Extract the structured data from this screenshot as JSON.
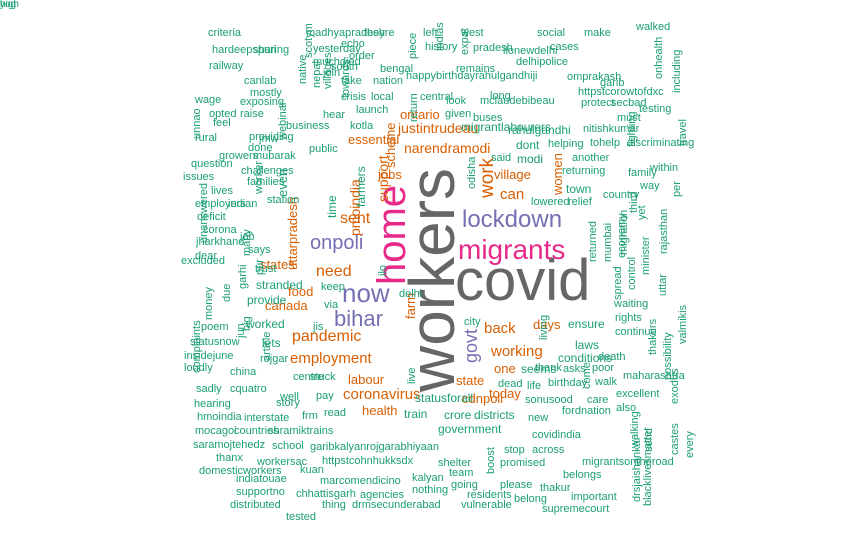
{
  "palette": {
    "teal": "#1b9e77",
    "orange": "#d95f02",
    "purple": "#7570b3",
    "magenta": "#e7298a",
    "gray": "#666666"
  },
  "words": [
    {
      "text": "covid",
      "color": "gray"
    },
    {
      "text": "workers",
      "color": "gray"
    },
    {
      "text": "home",
      "color": "magenta"
    },
    {
      "text": "migrants",
      "color": "magenta"
    },
    {
      "text": "lockdown",
      "color": "purple"
    },
    {
      "text": "now",
      "color": "purple"
    },
    {
      "text": "bihar",
      "color": "purple"
    },
    {
      "text": "onpoli",
      "color": "purple"
    },
    {
      "text": "govt",
      "color": "purple"
    },
    {
      "text": "work",
      "color": "orange"
    },
    {
      "text": "need",
      "color": "orange"
    },
    {
      "text": "sent",
      "color": "orange"
    },
    {
      "text": "pandemic",
      "color": "orange"
    },
    {
      "text": "employment",
      "color": "orange"
    },
    {
      "text": "coronavirus",
      "color": "orange"
    },
    {
      "text": "working",
      "color": "orange"
    },
    {
      "text": "justintrudeau",
      "color": "orange"
    },
    {
      "text": "narendramodi",
      "color": "orange"
    },
    {
      "text": "support",
      "color": "orange"
    },
    {
      "text": "pmoindia",
      "color": "orange"
    },
    {
      "text": "can",
      "color": "orange"
    },
    {
      "text": "back",
      "color": "orange"
    },
    {
      "text": "states",
      "color": "orange"
    },
    {
      "text": "canada",
      "color": "orange"
    },
    {
      "text": "food",
      "color": "orange"
    },
    {
      "text": "jobs",
      "color": "orange"
    },
    {
      "text": "village",
      "color": "orange"
    },
    {
      "text": "days",
      "color": "orange"
    },
    {
      "text": "state",
      "color": "orange"
    },
    {
      "text": "labour",
      "color": "orange"
    },
    {
      "text": "health",
      "color": "orange"
    },
    {
      "text": "cdnpoli",
      "color": "orange"
    },
    {
      "text": "today",
      "color": "orange"
    },
    {
      "text": "one",
      "color": "orange"
    },
    {
      "text": "ontario",
      "color": "orange"
    },
    {
      "text": "scheme",
      "color": "orange"
    },
    {
      "text": "essential",
      "color": "orange"
    },
    {
      "text": "women",
      "color": "orange"
    },
    {
      "text": "uttarpradesh",
      "color": "orange"
    },
    {
      "text": "farm",
      "color": "orange"
    },
    {
      "text": "ensure",
      "color": "teal"
    },
    {
      "text": "migrantlabourers",
      "color": "teal"
    },
    {
      "text": "rahulgandhi",
      "color": "teal"
    },
    {
      "text": "mclaudebibeau",
      "color": "teal"
    },
    {
      "text": "happybirthdayrahulgandhiji",
      "color": "teal"
    },
    {
      "text": "kotla",
      "color": "teal"
    },
    {
      "text": "business",
      "color": "teal"
    },
    {
      "text": "public",
      "color": "teal"
    },
    {
      "text": "mubarak",
      "color": "teal"
    },
    {
      "text": "dont",
      "color": "teal"
    },
    {
      "text": "modi",
      "color": "teal"
    },
    {
      "text": "said",
      "color": "teal"
    },
    {
      "text": "helping",
      "color": "teal"
    },
    {
      "text": "another",
      "color": "teal"
    },
    {
      "text": "returning",
      "color": "teal"
    },
    {
      "text": "town",
      "color": "teal"
    },
    {
      "text": "country",
      "color": "teal"
    },
    {
      "text": "relief",
      "color": "teal"
    },
    {
      "text": "returned",
      "color": "teal"
    },
    {
      "text": "mumbai",
      "color": "teal"
    },
    {
      "text": "economy",
      "color": "teal"
    },
    {
      "text": "migration",
      "color": "teal"
    },
    {
      "text": "third",
      "color": "teal"
    },
    {
      "text": "yet",
      "color": "teal"
    },
    {
      "text": "rajasthan",
      "color": "teal"
    },
    {
      "text": "minister",
      "color": "teal"
    },
    {
      "text": "control",
      "color": "teal"
    },
    {
      "text": "spread",
      "color": "teal"
    },
    {
      "text": "waiting",
      "color": "teal"
    },
    {
      "text": "rights",
      "color": "teal"
    },
    {
      "text": "continue",
      "color": "teal"
    },
    {
      "text": "laws",
      "color": "teal"
    },
    {
      "text": "conditions",
      "color": "teal"
    },
    {
      "text": "death",
      "color": "teal"
    },
    {
      "text": "seems",
      "color": "teal"
    },
    {
      "text": "thank",
      "color": "teal"
    },
    {
      "text": "asks",
      "color": "teal"
    },
    {
      "text": "poor",
      "color": "teal"
    },
    {
      "text": "birthday",
      "color": "teal"
    },
    {
      "text": "walk",
      "color": "teal"
    },
    {
      "text": "dead",
      "color": "teal"
    },
    {
      "text": "life",
      "color": "teal"
    },
    {
      "text": "sonusood",
      "color": "teal"
    },
    {
      "text": "care",
      "color": "teal"
    },
    {
      "text": "fordnation",
      "color": "teal"
    },
    {
      "text": "come",
      "color": "teal"
    },
    {
      "text": "new",
      "color": "teal"
    },
    {
      "text": "covidindia",
      "color": "teal"
    },
    {
      "text": "crore",
      "color": "teal"
    },
    {
      "text": "districts",
      "color": "teal"
    },
    {
      "text": "government",
      "color": "teal"
    },
    {
      "text": "statusforall",
      "color": "teal"
    },
    {
      "text": "train",
      "color": "teal"
    },
    {
      "text": "read",
      "color": "teal"
    },
    {
      "text": "frm",
      "color": "teal"
    },
    {
      "text": "pay",
      "color": "teal"
    },
    {
      "text": "stuck",
      "color": "teal"
    },
    {
      "text": "story",
      "color": "teal"
    },
    {
      "text": "interstate",
      "color": "teal"
    },
    {
      "text": "shramiktrains",
      "color": "teal"
    },
    {
      "text": "school",
      "color": "teal"
    },
    {
      "text": "garibkalyanrojgarabhiyaan",
      "color": "teal"
    },
    {
      "text": "httpstcohnhukksdx",
      "color": "teal"
    },
    {
      "text": "shelter",
      "color": "teal"
    },
    {
      "text": "promised",
      "color": "teal"
    },
    {
      "text": "stop",
      "color": "teal"
    },
    {
      "text": "across",
      "color": "teal"
    },
    {
      "text": "boost",
      "color": "teal"
    },
    {
      "text": "kalyan",
      "color": "teal"
    },
    {
      "text": "team",
      "color": "teal"
    },
    {
      "text": "marcomendicino",
      "color": "teal"
    },
    {
      "text": "workersac",
      "color": "teal"
    },
    {
      "text": "kuan",
      "color": "teal"
    },
    {
      "text": "chhattisgarh",
      "color": "teal"
    },
    {
      "text": "agencies",
      "color": "teal"
    },
    {
      "text": "nothing",
      "color": "teal"
    },
    {
      "text": "going",
      "color": "teal"
    },
    {
      "text": "residents",
      "color": "teal"
    },
    {
      "text": "please",
      "color": "teal"
    },
    {
      "text": "belong",
      "color": "teal"
    },
    {
      "text": "thakur",
      "color": "teal"
    },
    {
      "text": "belongs",
      "color": "teal"
    },
    {
      "text": "important",
      "color": "teal"
    },
    {
      "text": "drmsecunderabad",
      "color": "teal"
    },
    {
      "text": "vulnerable",
      "color": "teal"
    },
    {
      "text": "supremecourt",
      "color": "teal"
    },
    {
      "text": "thing",
      "color": "teal"
    },
    {
      "text": "tested",
      "color": "teal"
    },
    {
      "text": "distributed",
      "color": "teal"
    },
    {
      "text": "supportno",
      "color": "teal"
    },
    {
      "text": "indiatouae",
      "color": "teal"
    },
    {
      "text": "domesticworkers",
      "color": "teal"
    },
    {
      "text": "thanx",
      "color": "teal"
    },
    {
      "text": "saramojtehedz",
      "color": "teal"
    },
    {
      "text": "mocagoi",
      "color": "teal"
    },
    {
      "text": "hmoindia",
      "color": "teal"
    },
    {
      "text": "countries",
      "color": "teal"
    },
    {
      "text": "hearing",
      "color": "teal"
    },
    {
      "text": "cquatro",
      "color": "teal"
    },
    {
      "text": "sadly",
      "color": "teal"
    },
    {
      "text": "complaints",
      "color": "teal"
    },
    {
      "text": "loudly",
      "color": "teal"
    },
    {
      "text": "china",
      "color": "teal"
    },
    {
      "text": "insidejune",
      "color": "teal"
    },
    {
      "text": "statusnow",
      "color": "teal"
    },
    {
      "text": "poem",
      "color": "teal"
    },
    {
      "text": "dear",
      "color": "teal"
    },
    {
      "text": "excluded",
      "color": "teal"
    },
    {
      "text": "jharkhand",
      "color": "teal"
    },
    {
      "text": "corona",
      "color": "teal"
    },
    {
      "text": "deficit",
      "color": "teal"
    },
    {
      "text": "employers",
      "color": "teal"
    },
    {
      "text": "indian",
      "color": "teal"
    },
    {
      "text": "lives",
      "color": "teal"
    },
    {
      "text": "issues",
      "color": "teal"
    },
    {
      "text": "question",
      "color": "teal"
    },
    {
      "text": "challenges",
      "color": "teal"
    },
    {
      "text": "families",
      "color": "teal"
    },
    {
      "text": "growers",
      "color": "teal"
    },
    {
      "text": "done",
      "color": "teal"
    },
    {
      "text": "rural",
      "color": "teal"
    },
    {
      "text": "providing",
      "color": "teal"
    },
    {
      "text": "feel",
      "color": "teal"
    },
    {
      "text": "opted",
      "color": "teal"
    },
    {
      "text": "raise",
      "color": "teal"
    },
    {
      "text": "jmw",
      "color": "teal"
    },
    {
      "text": "wage",
      "color": "teal"
    },
    {
      "text": "exposing",
      "color": "teal"
    },
    {
      "text": "mostly",
      "color": "teal"
    },
    {
      "text": "canlab",
      "color": "teal"
    },
    {
      "text": "railway",
      "color": "teal"
    },
    {
      "text": "hardeepspuri",
      "color": "teal"
    },
    {
      "text": "sharing",
      "color": "teal"
    },
    {
      "text": "criteria",
      "color": "teal"
    },
    {
      "text": "madhyapradesh",
      "color": "teal"
    },
    {
      "text": "theyre",
      "color": "teal"
    },
    {
      "text": "echo",
      "color": "teal"
    },
    {
      "text": "yesterday",
      "color": "teal"
    },
    {
      "text": "order",
      "color": "teal"
    },
    {
      "text": "muchdied",
      "color": "teal"
    },
    {
      "text": "south",
      "color": "teal"
    },
    {
      "text": "bengal",
      "color": "teal"
    },
    {
      "text": "join",
      "color": "teal"
    },
    {
      "text": "take",
      "color": "teal"
    },
    {
      "text": "nation",
      "color": "teal"
    },
    {
      "text": "crisis",
      "color": "teal"
    },
    {
      "text": "local",
      "color": "teal"
    },
    {
      "text": "hear",
      "color": "teal"
    },
    {
      "text": "launch",
      "color": "teal"
    },
    {
      "text": "central",
      "color": "teal"
    },
    {
      "text": "look",
      "color": "teal"
    },
    {
      "text": "long",
      "color": "teal"
    },
    {
      "text": "given",
      "color": "teal"
    },
    {
      "text": "buses",
      "color": "teal"
    },
    {
      "text": "remains",
      "color": "teal"
    },
    {
      "text": "left",
      "color": "teal"
    },
    {
      "text": "history",
      "color": "teal"
    },
    {
      "text": "indias",
      "color": "teal"
    },
    {
      "text": "west",
      "color": "teal"
    },
    {
      "text": "pradesh",
      "color": "teal"
    },
    {
      "text": "ilonewdelhi",
      "color": "teal"
    },
    {
      "text": "social",
      "color": "teal"
    },
    {
      "text": "make",
      "color": "teal"
    },
    {
      "text": "cases",
      "color": "teal"
    },
    {
      "text": "delhipolice",
      "color": "teal"
    },
    {
      "text": "omprakash",
      "color": "teal"
    },
    {
      "text": "httpstcorowtofdxc",
      "color": "teal"
    },
    {
      "text": "protect",
      "color": "teal"
    },
    {
      "text": "secbad",
      "color": "teal"
    },
    {
      "text": "must",
      "color": "teal"
    },
    {
      "text": "garib",
      "color": "teal"
    },
    {
      "text": "walked",
      "color": "teal"
    },
    {
      "text": "onhealth",
      "color": "teal"
    },
    {
      "text": "including",
      "color": "teal"
    },
    {
      "text": "testing",
      "color": "teal"
    },
    {
      "text": "nitishkumar",
      "color": "teal"
    },
    {
      "text": "tohelp",
      "color": "teal"
    },
    {
      "text": "discriminating",
      "color": "teal"
    },
    {
      "text": "travel",
      "color": "teal"
    },
    {
      "text": "fighting",
      "color": "teal"
    },
    {
      "text": "within",
      "color": "teal"
    },
    {
      "text": "family",
      "color": "teal"
    },
    {
      "text": "way",
      "color": "teal"
    },
    {
      "text": "per",
      "color": "teal"
    },
    {
      "text": "uttar",
      "color": "teal"
    },
    {
      "text": "valmikis",
      "color": "teal"
    },
    {
      "text": "thakurs",
      "color": "teal"
    },
    {
      "text": "possibility",
      "color": "teal"
    },
    {
      "text": "maharashtra",
      "color": "teal"
    },
    {
      "text": "excellent",
      "color": "teal"
    },
    {
      "text": "also",
      "color": "teal"
    },
    {
      "text": "exodus",
      "color": "teal"
    },
    {
      "text": "send",
      "color": "teal"
    },
    {
      "text": "walking",
      "color": "teal"
    },
    {
      "text": "castes",
      "color": "teal"
    },
    {
      "text": "every",
      "color": "teal"
    },
    {
      "text": "blacklivesmatter",
      "color": "teal"
    },
    {
      "text": "migrantsontheroad",
      "color": "teal"
    },
    {
      "text": "drsjaishankar",
      "color": "teal"
    },
    {
      "text": "lowered",
      "color": "teal"
    },
    {
      "text": "odisha",
      "color": "teal"
    },
    {
      "text": "city",
      "color": "teal"
    },
    {
      "text": "living",
      "color": "teal"
    },
    {
      "text": "live",
      "color": "teal"
    },
    {
      "text": "delhi",
      "color": "teal"
    },
    {
      "text": "keep",
      "color": "teal"
    },
    {
      "text": "via",
      "color": "teal"
    },
    {
      "text": "ilo",
      "color": "teal"
    },
    {
      "text": "jis",
      "color": "teal"
    },
    {
      "text": "lets",
      "color": "teal"
    },
    {
      "text": "stranded",
      "color": "teal"
    },
    {
      "text": "provide",
      "color": "teal"
    },
    {
      "text": "even",
      "color": "teal"
    },
    {
      "text": "time",
      "color": "teal"
    },
    {
      "text": "farmers",
      "color": "teal"
    },
    {
      "text": "station",
      "color": "teal"
    },
    {
      "text": "worker",
      "color": "teal"
    },
    {
      "text": "job",
      "color": "teal"
    },
    {
      "text": "says",
      "color": "teal"
    },
    {
      "text": "many",
      "color": "teal"
    },
    {
      "text": "pur",
      "color": "teal"
    },
    {
      "text": "trust",
      "color": "teal"
    },
    {
      "text": "worked",
      "color": "teal"
    },
    {
      "text": "jun",
      "color": "teal"
    },
    {
      "text": "big",
      "color": "teal"
    },
    {
      "text": "article",
      "color": "teal"
    },
    {
      "text": "rojgar",
      "color": "teal"
    },
    {
      "text": "centre",
      "color": "teal"
    },
    {
      "text": "well",
      "color": "teal"
    },
    {
      "text": "due",
      "color": "teal"
    },
    {
      "text": "garhi",
      "color": "teal"
    },
    {
      "text": "money",
      "color": "teal"
    },
    {
      "text": "unnao",
      "color": "teal"
    },
    {
      "text": "unanswered",
      "color": "teal"
    },
    {
      "text": "webinar",
      "color": "teal"
    },
    {
      "text": "nepal",
      "color": "teal"
    },
    {
      "text": "villages",
      "color": "teal"
    },
    {
      "text": "towards",
      "color": "teal"
    },
    {
      "text": "native",
      "color": "teal"
    },
    {
      "text": "scotym",
      "color": "teal"
    },
    {
      "text": "piece",
      "color": "teal"
    },
    {
      "text": "expat",
      "color": "teal"
    },
    {
      "text": "return",
      "color": "teal"
    },
    {
      "text": "yog",
      "color": "teal"
    },
    {
      "text": "high",
      "color": "teal"
    }
  ]
}
